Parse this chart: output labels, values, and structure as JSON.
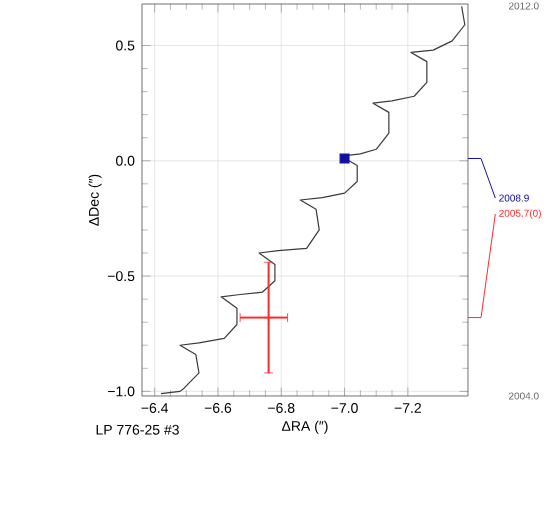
{
  "chart_data": {
    "type": "line",
    "xlabel": "ΔRA (″)",
    "ylabel": "ΔDec (″)",
    "xlim": [
      -6.36,
      -7.39
    ],
    "ylim": [
      -1.02,
      0.68
    ],
    "xticks": [
      {
        "value": -6.4,
        "label": "−6.4"
      },
      {
        "value": -6.6,
        "label": "−6.6"
      },
      {
        "value": -6.8,
        "label": "−6.8"
      },
      {
        "value": -7.0,
        "label": "−7.0"
      },
      {
        "value": -7.2,
        "label": "−7.2"
      }
    ],
    "yticks": [
      {
        "value": -1.0,
        "label": "−1.0"
      },
      {
        "value": -0.5,
        "label": "−0.5"
      },
      {
        "value": 0.0,
        "label": "0.0"
      },
      {
        "value": 0.5,
        "label": "0.5"
      }
    ],
    "grid": true,
    "line_style": "solid",
    "series": [
      {
        "color": "#3a3a3a",
        "marker": "none",
        "x": [
          -6.42,
          -6.48,
          -6.49,
          -6.54,
          -6.53,
          -6.48,
          -6.54,
          -6.62,
          -6.66,
          -6.66,
          -6.61,
          -6.67,
          -6.74,
          -6.78,
          -6.78,
          -6.73,
          -6.79,
          -6.88,
          -6.92,
          -6.91,
          -6.86,
          -6.93,
          -7.0,
          -7.04,
          -7.04,
          -6.99,
          -7.05,
          -7.1,
          -7.14,
          -7.14,
          -7.09,
          -7.15,
          -7.22,
          -7.26,
          -7.26,
          -7.21,
          -7.28,
          -7.34,
          -7.38,
          -7.37
        ],
        "values": [
          -1.01,
          -1.0,
          -0.99,
          -0.92,
          -0.84,
          -0.8,
          -0.79,
          -0.77,
          -0.71,
          -0.64,
          -0.59,
          -0.58,
          -0.57,
          -0.52,
          -0.45,
          -0.4,
          -0.39,
          -0.38,
          -0.3,
          -0.21,
          -0.17,
          -0.16,
          -0.14,
          -0.09,
          -0.02,
          0.02,
          0.03,
          0.05,
          0.12,
          0.21,
          0.25,
          0.26,
          0.28,
          0.34,
          0.43,
          0.47,
          0.48,
          0.52,
          0.59,
          0.67
        ]
      },
      {
        "type": "scatter",
        "name": "2008.9",
        "color": "#1010a0",
        "marker": "square",
        "x": [
          -7.0
        ],
        "values": [
          0.01
        ]
      },
      {
        "type": "scatter",
        "name": "2005.7(0)",
        "color": "#ff2a2a",
        "marker": "cross",
        "x": [
          -6.76
        ],
        "values": [
          -0.68
        ],
        "errors": [
          [
            -0.92,
            -0.44
          ]
        ],
        "xerrors": [
          [
            -6.82,
            -6.67
          ]
        ]
      }
    ],
    "annotations": [
      "2012.0",
      "2004.0",
      "LP 776-25 #3"
    ]
  }
}
